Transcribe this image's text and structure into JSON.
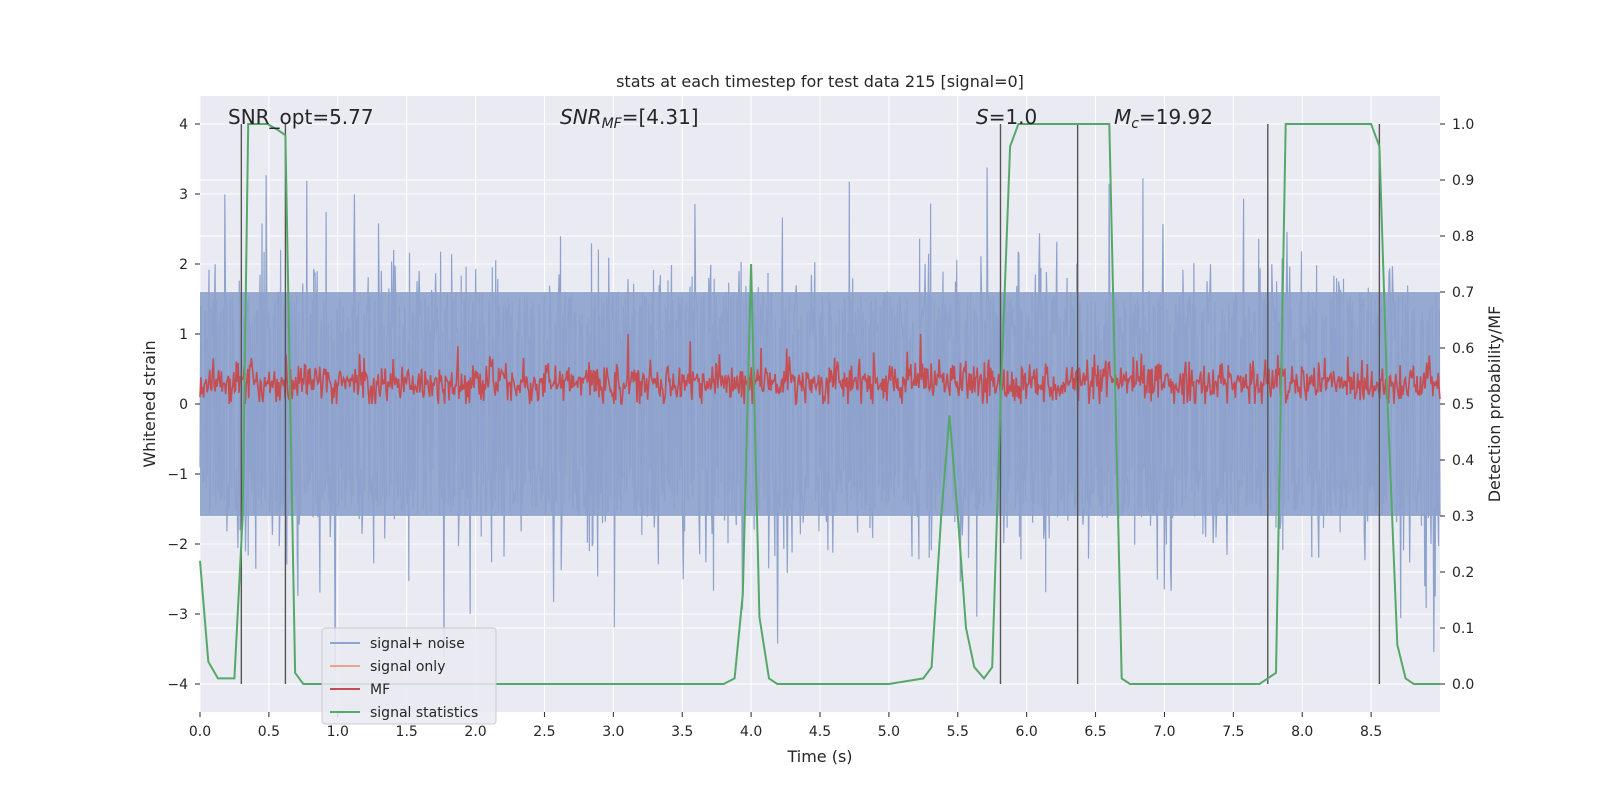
{
  "chart_data": {
    "type": "line",
    "title": "stats at each timestep for test data 215 [signal=0]",
    "xlabel": "Time (s)",
    "ylabel": "Whitened strain",
    "y2label": "Detection probability/MF",
    "xlim": [
      0.0,
      9.0
    ],
    "ylim": [
      -4.4,
      4.4
    ],
    "y2lim": [
      -0.05,
      1.05
    ],
    "xticks": [
      "0.0",
      "0.5",
      "1.0",
      "1.5",
      "2.0",
      "2.5",
      "3.0",
      "3.5",
      "4.0",
      "4.5",
      "5.0",
      "5.5",
      "6.0",
      "6.5",
      "7.0",
      "7.5",
      "8.0",
      "8.5"
    ],
    "yticks": [
      -4,
      -3,
      -2,
      -1,
      0,
      1,
      2,
      3,
      4
    ],
    "yticks_labels": [
      "−4",
      "−3",
      "−2",
      "−1",
      "0",
      "1",
      "2",
      "3",
      "4"
    ],
    "y2ticks": [
      "0.0",
      "0.1",
      "0.2",
      "0.3",
      "0.4",
      "0.5",
      "0.6",
      "0.7",
      "0.8",
      "0.9",
      "1.0"
    ],
    "grid": true,
    "legend_placement": "lower-left",
    "annotations": {
      "snr_opt": "SNR_opt=5.77",
      "snr_mf_sym": "SNR",
      "snr_mf_sub": "MF",
      "snr_mf_val": "=[4.31]",
      "s_sym": "S",
      "s_val": "=1.0",
      "mc_sym": "M",
      "mc_sub": "c",
      "mc_val": "=19.92"
    },
    "colors": {
      "background": "#eaeaf2",
      "grid": "#ffffff",
      "noise": "#8da2cc",
      "signal_only": "#e8a58a",
      "mf": "#c44e52",
      "stats": "#55a868",
      "vlines": "#555555"
    },
    "series": [
      {
        "name": "signal+ noise",
        "style": "noise",
        "description_band": [
          -1.6,
          1.6
        ],
        "extremes": [
          -4.0,
          4.0
        ]
      },
      {
        "name": "signal only",
        "values": []
      },
      {
        "name": "MF",
        "style": "noise-small",
        "range": [
          0.0,
          1.0
        ],
        "typical": 0.3
      },
      {
        "name": "signal statistics",
        "axis": "y2",
        "x": [
          0.0,
          0.06,
          0.13,
          0.19,
          0.25,
          0.31,
          0.35,
          0.39,
          0.44,
          0.49,
          0.56,
          0.62,
          0.69,
          0.75,
          0.81,
          0.88,
          0.94,
          1.0,
          1.5,
          2.0,
          2.5,
          3.0,
          3.5,
          3.8,
          3.88,
          3.94,
          4.0,
          4.06,
          4.13,
          4.19,
          4.25,
          4.5,
          5.0,
          5.25,
          5.31,
          5.38,
          5.44,
          5.5,
          5.56,
          5.62,
          5.69,
          5.75,
          5.81,
          5.88,
          5.94,
          6.0,
          6.5,
          6.6,
          6.69,
          6.75,
          6.81,
          6.88,
          6.94,
          7.0,
          7.5,
          7.69,
          7.75,
          7.81,
          7.88,
          8.0,
          8.5,
          8.56,
          8.62,
          8.69,
          8.75,
          8.81,
          8.88,
          9.0
        ],
        "y": [
          0.22,
          0.04,
          0.01,
          0.01,
          0.01,
          0.3,
          1.0,
          1.0,
          1.0,
          1.0,
          0.99,
          0.98,
          0.02,
          0.0,
          0.0,
          0.0,
          0.0,
          0.0,
          0.0,
          0.0,
          0.0,
          0.0,
          0.0,
          0.0,
          0.01,
          0.16,
          0.75,
          0.12,
          0.01,
          0.0,
          0.0,
          0.0,
          0.0,
          0.01,
          0.03,
          0.3,
          0.48,
          0.3,
          0.1,
          0.03,
          0.01,
          0.03,
          0.5,
          0.96,
          1.0,
          1.0,
          1.0,
          1.0,
          0.01,
          0.0,
          0.0,
          0.0,
          0.0,
          0.0,
          0.0,
          0.0,
          0.01,
          0.02,
          1.0,
          1.0,
          1.0,
          0.96,
          0.5,
          0.07,
          0.01,
          0.0,
          0.0,
          0.0
        ]
      }
    ],
    "vlines_x": [
      0.3,
      0.62,
      5.81,
      6.37,
      7.75,
      8.56
    ],
    "vlines_range": [
      -4.0,
      4.0
    ]
  }
}
